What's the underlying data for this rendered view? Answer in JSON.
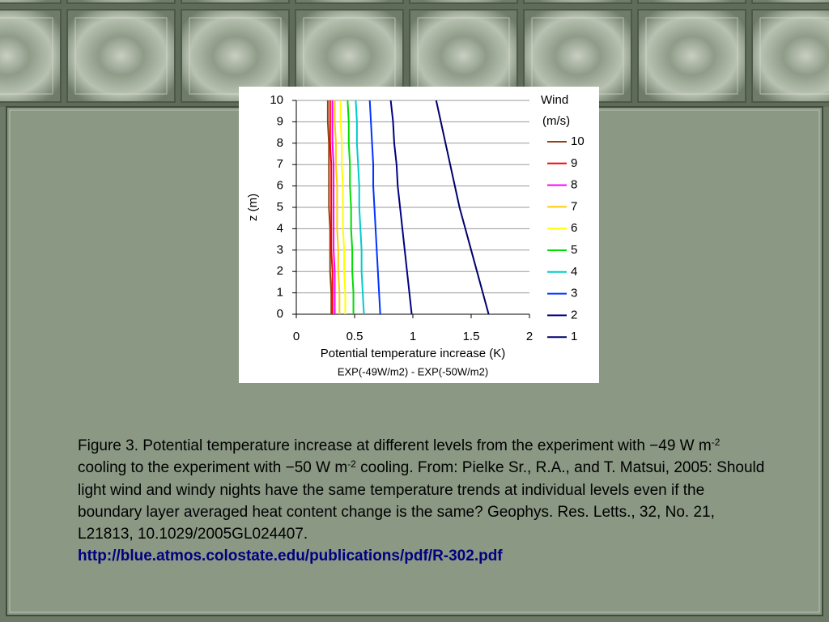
{
  "chart_data": {
    "type": "line",
    "y_label": "z (m)",
    "x_label": "Potential temperature increase (K)",
    "subtitle": "EXP(-49W/m2) - EXP(-50W/m2)",
    "legend_title": [
      "Wind",
      "(m/s)"
    ],
    "heights": [
      0,
      1,
      2,
      3,
      4,
      5,
      6,
      7,
      8,
      9,
      10
    ],
    "series": [
      {
        "name": "10",
        "color": "#8b4513",
        "values": [
          0.3,
          0.3,
          0.29,
          0.29,
          0.29,
          0.28,
          0.28,
          0.28,
          0.28,
          0.27,
          0.27
        ]
      },
      {
        "name": "9",
        "color": "#ff0000",
        "values": [
          0.31,
          0.31,
          0.31,
          0.3,
          0.3,
          0.3,
          0.3,
          0.3,
          0.29,
          0.29,
          0.29
        ]
      },
      {
        "name": "8",
        "color": "#ff00ff",
        "values": [
          0.33,
          0.33,
          0.33,
          0.32,
          0.32,
          0.32,
          0.32,
          0.32,
          0.31,
          0.31,
          0.31
        ]
      },
      {
        "name": "7",
        "color": "#ffcc00",
        "values": [
          0.37,
          0.37,
          0.36,
          0.36,
          0.35,
          0.35,
          0.35,
          0.34,
          0.34,
          0.33,
          0.33
        ]
      },
      {
        "name": "6",
        "color": "#ffff00",
        "values": [
          0.42,
          0.42,
          0.41,
          0.41,
          0.4,
          0.4,
          0.4,
          0.39,
          0.39,
          0.38,
          0.38
        ]
      },
      {
        "name": "5",
        "color": "#00dd00",
        "values": [
          0.49,
          0.49,
          0.48,
          0.48,
          0.47,
          0.47,
          0.46,
          0.46,
          0.45,
          0.45,
          0.44
        ]
      },
      {
        "name": "4",
        "color": "#00cccc",
        "values": [
          0.58,
          0.57,
          0.56,
          0.56,
          0.55,
          0.54,
          0.54,
          0.53,
          0.52,
          0.52,
          0.51
        ]
      },
      {
        "name": "3",
        "color": "#0033ff",
        "values": [
          0.72,
          0.71,
          0.7,
          0.69,
          0.68,
          0.67,
          0.66,
          0.66,
          0.65,
          0.64,
          0.63
        ]
      },
      {
        "name": "2",
        "color": "#000080",
        "values": [
          0.99,
          0.97,
          0.95,
          0.93,
          0.91,
          0.89,
          0.87,
          0.86,
          0.84,
          0.83,
          0.81
        ]
      },
      {
        "name": "1",
        "color": "#00006e",
        "values": [
          1.65,
          1.6,
          1.55,
          1.5,
          1.45,
          1.4,
          1.36,
          1.32,
          1.28,
          1.24,
          1.2
        ]
      }
    ],
    "xlim": [
      0,
      2
    ],
    "xticks": [
      0,
      0.5,
      1,
      1.5,
      2
    ],
    "ylim": [
      0,
      10
    ],
    "yticks": [
      0,
      1,
      2,
      3,
      4,
      5,
      6,
      7,
      8,
      9,
      10
    ],
    "grid": true
  },
  "caption": {
    "parts": [
      "Figure 3. Potential temperature increase at different levels from the experiment with −49 W m",
      " cooling to the experiment with −50 W m",
      " cooling. From: Pielke Sr., R.A., and T. Matsui, 2005: Should light wind and windy nights have the same temperature trends at individual levels even if the boundary layer averaged heat content change is the same? Geophys. Res. Letts., 32, No. 21, L21813, 10.1029/2005GL024407."
    ],
    "superscripts": [
      "-2",
      "-2"
    ],
    "link": "http://blue.atmos.colostate.edu/publications/pdf/R-302.pdf"
  }
}
